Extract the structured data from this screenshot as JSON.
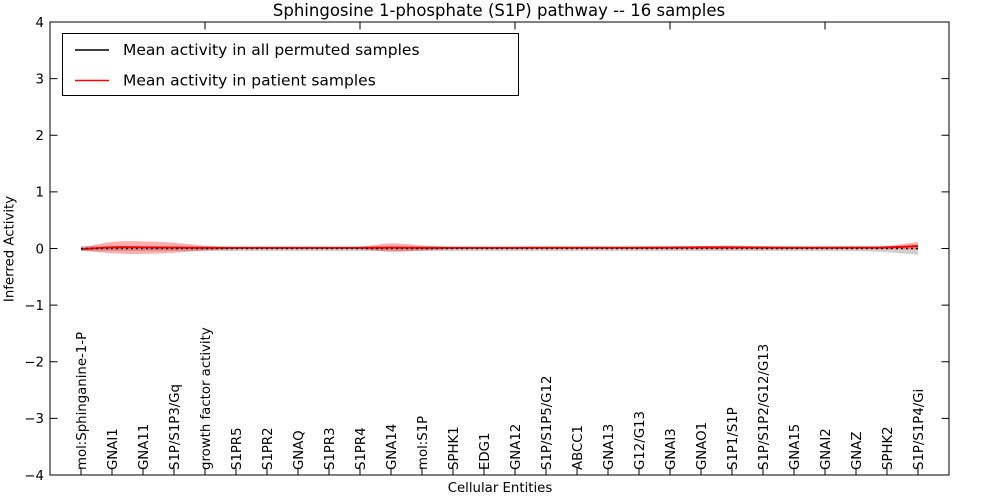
{
  "chart_data": {
    "type": "line",
    "title": "Sphingosine 1-phosphate (S1P) pathway -- 16 samples",
    "xlabel": "Cellular Entities",
    "ylabel": "Inferred Activity",
    "ylim": [
      -4,
      4
    ],
    "yticks": [
      4,
      3,
      2,
      1,
      0,
      -1,
      -2,
      -3,
      -4
    ],
    "grid": false,
    "legend_position": "upper left",
    "x_tick_rotation": 90,
    "top_tick_indices": [
      4,
      9,
      14,
      19,
      24
    ],
    "categories": [
      "mol:Sphinganine-1-P",
      "GNAI1",
      "GNA11",
      "S1P/S1P3/Gq",
      "growth factor activity",
      "S1PR5",
      "S1PR2",
      "GNAQ",
      "S1PR3",
      "S1PR4",
      "GNA14",
      "mol:S1P",
      "SPHK1",
      "EDG1",
      "GNA12",
      "S1P/S1P5/G12",
      "ABCC1",
      "GNA13",
      "G12/G13",
      "GNAI3",
      "GNAO1",
      "S1P1/S1P",
      "S1P/S1P2/G12/G13",
      "GNA15",
      "GNAI2",
      "GNAZ",
      "SPHK2",
      "S1P/S1P4/Gi"
    ],
    "series": [
      {
        "name": "Mean activity in all permuted samples",
        "color": "#000000",
        "style": "dotted",
        "values": [
          0,
          0,
          0,
          0,
          0,
          0,
          0,
          0,
          0,
          0,
          0,
          0,
          0,
          0,
          0,
          0,
          0,
          0,
          0,
          0,
          0,
          0,
          0,
          0,
          0,
          0,
          0,
          0
        ]
      },
      {
        "name": "Mean activity in patient samples",
        "color": "#ff0000",
        "style": "solid",
        "values": [
          -0.01,
          0.02,
          0.02,
          0.015,
          0.01,
          0.01,
          0.01,
          0.01,
          0.01,
          0.01,
          0.015,
          0.01,
          0.01,
          0.01,
          0.01,
          0.012,
          0.012,
          0.012,
          0.012,
          0.015,
          0.018,
          0.018,
          0.015,
          0.012,
          0.012,
          0.015,
          0.02,
          0.045
        ]
      }
    ],
    "bands": [
      {
        "name": "permuted-sample-range",
        "color": "rgba(130,130,130,0.38)",
        "upper": [
          0.045,
          0.045,
          0.045,
          0.045,
          0.045,
          0.045,
          0.045,
          0.045,
          0.045,
          0.045,
          0.045,
          0.045,
          0.045,
          0.045,
          0.045,
          0.045,
          0.045,
          0.045,
          0.045,
          0.045,
          0.045,
          0.045,
          0.045,
          0.045,
          0.045,
          0.045,
          0.05,
          0.055
        ],
        "lower": [
          -0.045,
          -0.045,
          -0.045,
          -0.045,
          -0.045,
          -0.045,
          -0.045,
          -0.045,
          -0.045,
          -0.045,
          -0.045,
          -0.045,
          -0.045,
          -0.045,
          -0.045,
          -0.045,
          -0.045,
          -0.045,
          -0.045,
          -0.045,
          -0.045,
          -0.045,
          -0.045,
          -0.045,
          -0.045,
          -0.045,
          -0.065,
          -0.11
        ],
        "legend": false
      },
      {
        "name": "patient-sample-range",
        "color": "rgba(255,0,0,0.32)",
        "upper": [
          0.015,
          0.115,
          0.125,
          0.1,
          0.05,
          0.025,
          0.02,
          0.02,
          0.02,
          0.03,
          0.09,
          0.055,
          0.025,
          0.02,
          0.022,
          0.025,
          0.025,
          0.025,
          0.03,
          0.035,
          0.045,
          0.05,
          0.04,
          0.03,
          0.03,
          0.03,
          0.045,
          0.115
        ],
        "lower": [
          -0.035,
          -0.085,
          -0.095,
          -0.075,
          -0.035,
          -0.012,
          -0.01,
          -0.01,
          -0.01,
          -0.015,
          -0.06,
          -0.035,
          -0.01,
          -0.008,
          -0.008,
          -0.008,
          -0.008,
          -0.008,
          -0.008,
          -0.01,
          -0.012,
          -0.012,
          -0.012,
          -0.01,
          -0.01,
          -0.01,
          -0.012,
          -0.02
        ],
        "legend": false
      }
    ]
  }
}
